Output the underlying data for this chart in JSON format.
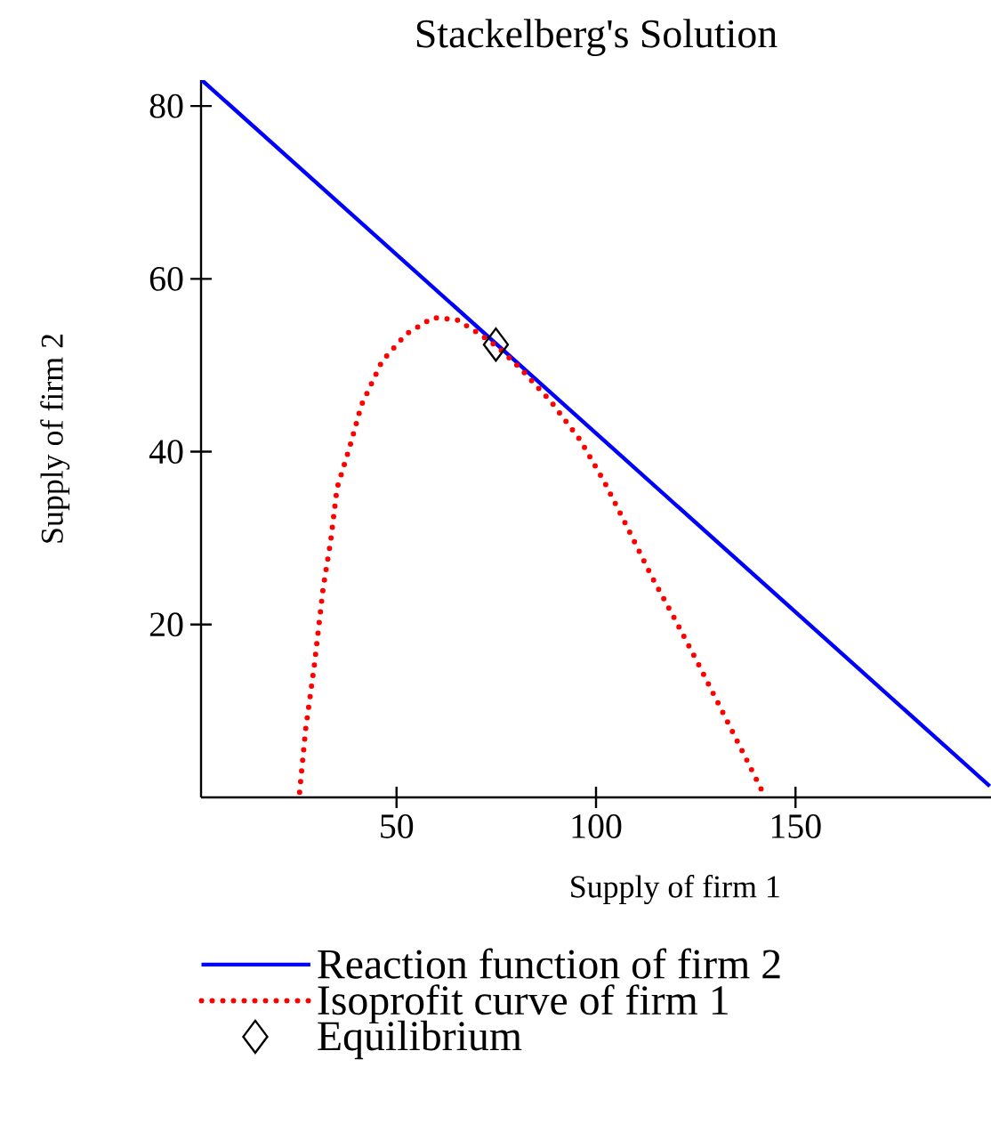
{
  "chart_data": {
    "type": "line",
    "title": "Stackelberg's Solution",
    "xlabel": "Supply of firm 1",
    "ylabel": "Supply of firm 2",
    "xlim": [
      1,
      199
    ],
    "ylim": [
      0,
      83
    ],
    "xticks": [
      50,
      100,
      150
    ],
    "yticks": [
      20,
      40,
      60,
      80
    ],
    "grid": false,
    "legend": "bottom",
    "series": [
      {
        "name": "Reaction function of firm 2",
        "color": "#0000ff",
        "line_style": "solid",
        "marker": "none",
        "x": [
          1.2,
          198.7
        ],
        "values": [
          83.0,
          1.3
        ]
      },
      {
        "name": "Isoprofit curve of firm 1",
        "color": "#ff0000",
        "line_style": "dotted",
        "marker": "none",
        "x": [
          25.7,
          27.2,
          29.4,
          31.6,
          33.5,
          35.1,
          38.3,
          41.2,
          46.4,
          52.4,
          59.1,
          65,
          70.9,
          75.4,
          81.3,
          88.7,
          96.1,
          102.1,
          108,
          113.9,
          119.9,
          125.8,
          131.8,
          137.7,
          142.1
        ],
        "values": [
          0.6,
          7.8,
          15.3,
          24.2,
          29.7,
          35.8,
          40.6,
          45.4,
          50.5,
          53.6,
          55.5,
          55.3,
          53.6,
          52.1,
          49.5,
          45.8,
          41.3,
          36.5,
          31.1,
          25.6,
          20.5,
          15.3,
          9.8,
          4.4,
          0.3
        ]
      },
      {
        "name": "Equilibrium",
        "color": "#000000",
        "type": "scatter",
        "marker": "diamond",
        "x": [
          74.9
        ],
        "values": [
          52.4
        ]
      }
    ]
  }
}
